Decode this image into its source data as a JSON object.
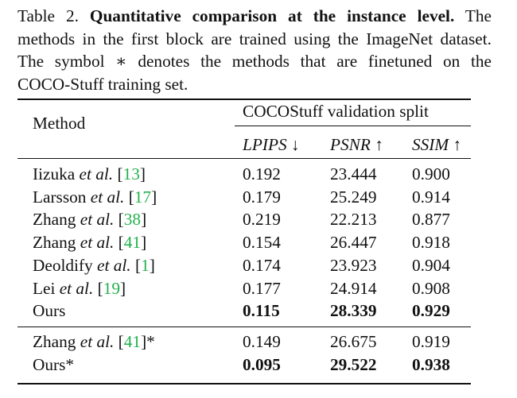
{
  "caption": {
    "label": "Table 2.",
    "title": "Quantitative comparison at the instance level.",
    "line1_rest": "The",
    "line2": "methods in the first block are trained using the ImageNet dataset.",
    "line3": "The symbol ∗ denotes the methods that are finetuned on the",
    "line4": "COCO-Stuff training set."
  },
  "table": {
    "method_header": "Method",
    "group_header": "COCOStuff validation split",
    "metric_headers": [
      "LPIPS ↓",
      "PSNR ↑",
      "SSIM ↑"
    ],
    "block1": [
      {
        "name": "Iizuka",
        "etal": "et al.",
        "ref": "13",
        "suffix": "",
        "lpips": "0.192",
        "psnr": "23.444",
        "ssim": "0.900",
        "bold": false
      },
      {
        "name": "Larsson",
        "etal": "et al.",
        "ref": "17",
        "suffix": "",
        "lpips": "0.179",
        "psnr": "25.249",
        "ssim": "0.914",
        "bold": false
      },
      {
        "name": "Zhang",
        "etal": "et al.",
        "ref": "38",
        "suffix": "",
        "lpips": "0.219",
        "psnr": "22.213",
        "ssim": "0.877",
        "bold": false
      },
      {
        "name": "Zhang",
        "etal": "et al.",
        "ref": "41",
        "suffix": "",
        "lpips": "0.154",
        "psnr": "26.447",
        "ssim": "0.918",
        "bold": false
      },
      {
        "name": "Deoldify",
        "etal": "et al.",
        "ref": "1",
        "suffix": "",
        "lpips": "0.174",
        "psnr": "23.923",
        "ssim": "0.904",
        "bold": false
      },
      {
        "name": "Lei",
        "etal": "et al.",
        "ref": "19",
        "suffix": "",
        "lpips": "0.177",
        "psnr": "24.914",
        "ssim": "0.908",
        "bold": false
      },
      {
        "name": "Ours",
        "etal": "",
        "ref": "",
        "suffix": "",
        "lpips": "0.115",
        "psnr": "28.339",
        "ssim": "0.929",
        "bold": true
      }
    ],
    "block2": [
      {
        "name": "Zhang",
        "etal": "et al.",
        "ref": "41",
        "suffix": "*",
        "lpips": "0.149",
        "psnr": "26.675",
        "ssim": "0.919",
        "bold": false
      },
      {
        "name": "Ours*",
        "etal": "",
        "ref": "",
        "suffix": "",
        "lpips": "0.095",
        "psnr": "29.522",
        "ssim": "0.938",
        "bold": true
      }
    ]
  }
}
